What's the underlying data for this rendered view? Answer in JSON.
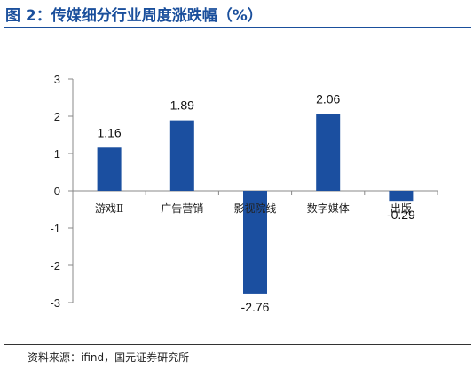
{
  "header": {
    "title": "图 2：传媒细分行业周度涨跌幅（%）"
  },
  "footer": {
    "source": "资料来源：ifind，国元证券研究所"
  },
  "chart_data": {
    "type": "bar",
    "title": "图 2：传媒细分行业周度涨跌幅（%）",
    "xlabel": "",
    "ylabel": "",
    "categories": [
      "游戏Ⅱ",
      "广告营销",
      "影视院线",
      "数字媒体",
      "出版"
    ],
    "values": [
      1.16,
      1.89,
      -2.76,
      2.06,
      -0.29
    ],
    "data_labels": [
      "1.16",
      "1.89",
      "-2.76",
      "2.06",
      "-0.29"
    ],
    "ylim": [
      -3,
      3
    ],
    "yticks": [
      3,
      2,
      1,
      0,
      -1,
      -2,
      -3
    ],
    "bar_color": "#1b4fa0",
    "grid": false,
    "legend": "none"
  }
}
